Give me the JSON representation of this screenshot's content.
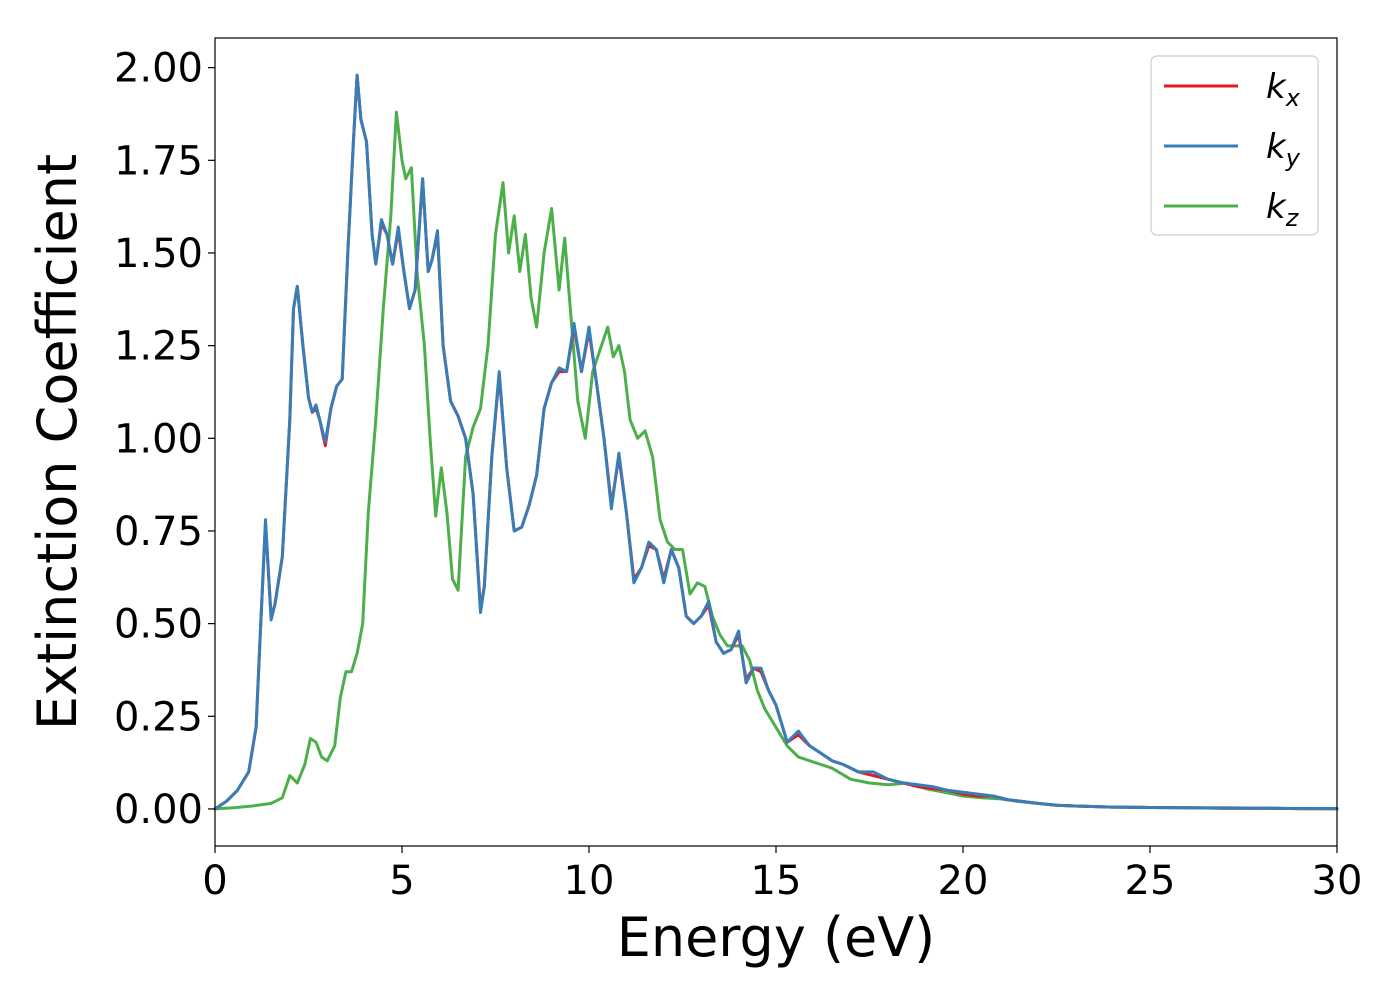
{
  "chart_data": {
    "type": "line",
    "title": "",
    "xlabel": "Energy (eV)",
    "ylabel": "Extinction Coefficient",
    "xlim": [
      0,
      30
    ],
    "ylim": [
      -0.1,
      2.08
    ],
    "xticks": [
      "0",
      "5",
      "10",
      "15",
      "20",
      "25",
      "30"
    ],
    "yticks": [
      "0.00",
      "0.25",
      "0.50",
      "0.75",
      "1.00",
      "1.25",
      "1.50",
      "1.75",
      "2.00"
    ],
    "grid": false,
    "legend_position": "top-right",
    "series": [
      {
        "name": "k_x",
        "label_base": "k",
        "label_sub": "x",
        "color": "#e41a1c",
        "x": [
          0,
          0.3,
          0.6,
          0.9,
          1.1,
          1.2,
          1.35,
          1.5,
          1.6,
          1.8,
          2.0,
          2.1,
          2.2,
          2.35,
          2.5,
          2.6,
          2.7,
          2.8,
          2.95,
          3.1,
          3.25,
          3.4,
          3.55,
          3.7,
          3.8,
          3.9,
          4.05,
          4.2,
          4.3,
          4.45,
          4.6,
          4.75,
          4.9,
          5.05,
          5.2,
          5.35,
          5.55,
          5.7,
          5.8,
          5.95,
          6.1,
          6.3,
          6.5,
          6.7,
          6.9,
          7.1,
          7.2,
          7.4,
          7.6,
          7.8,
          8.0,
          8.2,
          8.4,
          8.6,
          8.8,
          9.0,
          9.2,
          9.4,
          9.6,
          9.8,
          10.0,
          10.2,
          10.4,
          10.6,
          10.8,
          11.0,
          11.2,
          11.4,
          11.6,
          11.8,
          12.0,
          12.2,
          12.4,
          12.6,
          12.8,
          13.0,
          13.2,
          13.4,
          13.6,
          13.8,
          14.0,
          14.2,
          14.4,
          14.6,
          14.8,
          15.0,
          15.3,
          15.6,
          15.9,
          16.2,
          16.5,
          16.8,
          17.2,
          17.6,
          18.0,
          18.4,
          18.8,
          19.2,
          19.6,
          20.0,
          20.4,
          20.8,
          21.2,
          21.6,
          22.0,
          22.5,
          23.0,
          24.0,
          25.0,
          26.0,
          27.0,
          28.0,
          29.0,
          30.0
        ],
        "values": [
          0.0,
          0.02,
          0.05,
          0.1,
          0.22,
          0.45,
          0.77,
          0.52,
          0.55,
          0.68,
          1.05,
          1.35,
          1.41,
          1.25,
          1.11,
          1.07,
          1.08,
          1.05,
          0.98,
          1.08,
          1.14,
          1.16,
          1.5,
          1.8,
          1.98,
          1.86,
          1.8,
          1.55,
          1.47,
          1.58,
          1.55,
          1.47,
          1.56,
          1.45,
          1.35,
          1.4,
          1.7,
          1.45,
          1.48,
          1.55,
          1.25,
          1.1,
          1.06,
          1.0,
          0.85,
          0.54,
          0.6,
          0.95,
          1.17,
          0.92,
          0.75,
          0.76,
          0.82,
          0.9,
          1.08,
          1.15,
          1.18,
          1.18,
          1.3,
          1.18,
          1.29,
          1.15,
          1.0,
          0.82,
          0.95,
          0.8,
          0.62,
          0.65,
          0.71,
          0.7,
          0.62,
          0.7,
          0.65,
          0.52,
          0.5,
          0.52,
          0.55,
          0.45,
          0.42,
          0.43,
          0.47,
          0.35,
          0.38,
          0.37,
          0.32,
          0.28,
          0.18,
          0.2,
          0.17,
          0.15,
          0.13,
          0.12,
          0.1,
          0.09,
          0.08,
          0.07,
          0.06,
          0.055,
          0.05,
          0.04,
          0.035,
          0.035,
          0.025,
          0.02,
          0.015,
          0.01,
          0.008,
          0.005,
          0.004,
          0.003,
          0.002,
          0.002,
          0.001,
          0.001
        ]
      },
      {
        "name": "k_y",
        "label_base": "k",
        "label_sub": "y",
        "color": "#377eb8",
        "x": [
          0,
          0.3,
          0.6,
          0.9,
          1.1,
          1.2,
          1.35,
          1.5,
          1.6,
          1.8,
          2.0,
          2.1,
          2.2,
          2.35,
          2.5,
          2.6,
          2.7,
          2.8,
          2.95,
          3.1,
          3.25,
          3.4,
          3.55,
          3.7,
          3.8,
          3.9,
          4.05,
          4.2,
          4.3,
          4.45,
          4.6,
          4.75,
          4.9,
          5.05,
          5.2,
          5.35,
          5.55,
          5.7,
          5.8,
          5.95,
          6.1,
          6.3,
          6.5,
          6.7,
          6.9,
          7.1,
          7.2,
          7.4,
          7.6,
          7.8,
          8.0,
          8.2,
          8.4,
          8.6,
          8.8,
          9.0,
          9.2,
          9.4,
          9.6,
          9.8,
          10.0,
          10.2,
          10.4,
          10.6,
          10.8,
          11.0,
          11.2,
          11.4,
          11.6,
          11.8,
          12.0,
          12.2,
          12.4,
          12.6,
          12.8,
          13.0,
          13.2,
          13.4,
          13.6,
          13.8,
          14.0,
          14.2,
          14.4,
          14.6,
          14.8,
          15.0,
          15.3,
          15.6,
          15.9,
          16.2,
          16.5,
          16.8,
          17.2,
          17.6,
          18.0,
          18.4,
          18.8,
          19.2,
          19.6,
          20.0,
          20.4,
          20.8,
          21.2,
          21.6,
          22.0,
          22.5,
          23.0,
          24.0,
          25.0,
          26.0,
          27.0,
          28.0,
          29.0,
          30.0
        ],
        "values": [
          0.0,
          0.02,
          0.05,
          0.1,
          0.22,
          0.45,
          0.78,
          0.51,
          0.55,
          0.68,
          1.05,
          1.35,
          1.41,
          1.25,
          1.11,
          1.07,
          1.09,
          1.05,
          0.99,
          1.08,
          1.14,
          1.16,
          1.5,
          1.8,
          1.98,
          1.86,
          1.8,
          1.55,
          1.47,
          1.59,
          1.55,
          1.47,
          1.57,
          1.45,
          1.35,
          1.4,
          1.7,
          1.45,
          1.48,
          1.56,
          1.25,
          1.1,
          1.06,
          1.0,
          0.85,
          0.53,
          0.6,
          0.95,
          1.18,
          0.92,
          0.75,
          0.76,
          0.82,
          0.9,
          1.08,
          1.15,
          1.19,
          1.18,
          1.31,
          1.18,
          1.3,
          1.15,
          1.0,
          0.81,
          0.96,
          0.8,
          0.61,
          0.65,
          0.72,
          0.7,
          0.61,
          0.7,
          0.65,
          0.52,
          0.5,
          0.52,
          0.56,
          0.45,
          0.42,
          0.43,
          0.48,
          0.34,
          0.38,
          0.38,
          0.32,
          0.28,
          0.18,
          0.21,
          0.17,
          0.15,
          0.13,
          0.12,
          0.1,
          0.1,
          0.08,
          0.07,
          0.065,
          0.06,
          0.05,
          0.045,
          0.04,
          0.035,
          0.025,
          0.02,
          0.015,
          0.01,
          0.008,
          0.005,
          0.004,
          0.003,
          0.002,
          0.002,
          0.001,
          0.001
        ]
      },
      {
        "name": "k_z",
        "label_base": "k",
        "label_sub": "z",
        "color": "#4daf4a",
        "x": [
          0,
          0.5,
          1.0,
          1.5,
          1.8,
          2.0,
          2.2,
          2.4,
          2.55,
          2.7,
          2.85,
          3.0,
          3.2,
          3.35,
          3.5,
          3.65,
          3.8,
          3.95,
          4.1,
          4.3,
          4.5,
          4.7,
          4.85,
          5.0,
          5.1,
          5.25,
          5.4,
          5.6,
          5.75,
          5.9,
          6.05,
          6.2,
          6.35,
          6.5,
          6.7,
          6.9,
          7.1,
          7.3,
          7.5,
          7.7,
          7.85,
          8.0,
          8.15,
          8.3,
          8.45,
          8.6,
          8.8,
          9.0,
          9.2,
          9.35,
          9.5,
          9.7,
          9.9,
          10.1,
          10.3,
          10.5,
          10.65,
          10.8,
          10.95,
          11.1,
          11.3,
          11.5,
          11.7,
          11.9,
          12.1,
          12.3,
          12.5,
          12.7,
          12.9,
          13.1,
          13.3,
          13.5,
          13.7,
          13.9,
          14.1,
          14.3,
          14.5,
          14.7,
          15.0,
          15.3,
          15.6,
          15.9,
          16.2,
          16.5,
          17.0,
          17.5,
          18.0,
          18.5,
          19.0,
          19.5,
          20.0,
          20.5,
          21.0,
          21.5,
          22.0,
          22.5,
          23.0,
          24.0,
          25.0,
          26.0,
          27.0,
          28.0,
          29.0,
          30.0
        ],
        "values": [
          0.0,
          0.003,
          0.008,
          0.015,
          0.03,
          0.09,
          0.07,
          0.12,
          0.19,
          0.18,
          0.14,
          0.13,
          0.17,
          0.3,
          0.37,
          0.37,
          0.42,
          0.5,
          0.8,
          1.05,
          1.35,
          1.6,
          1.88,
          1.75,
          1.7,
          1.73,
          1.45,
          1.25,
          1.0,
          0.79,
          0.92,
          0.8,
          0.62,
          0.59,
          0.95,
          1.03,
          1.08,
          1.25,
          1.55,
          1.69,
          1.5,
          1.6,
          1.45,
          1.55,
          1.38,
          1.3,
          1.5,
          1.62,
          1.4,
          1.54,
          1.35,
          1.1,
          1.0,
          1.18,
          1.24,
          1.3,
          1.22,
          1.25,
          1.18,
          1.05,
          1.0,
          1.02,
          0.95,
          0.78,
          0.72,
          0.7,
          0.7,
          0.58,
          0.61,
          0.6,
          0.52,
          0.47,
          0.44,
          0.44,
          0.44,
          0.4,
          0.32,
          0.27,
          0.22,
          0.17,
          0.14,
          0.13,
          0.12,
          0.11,
          0.08,
          0.07,
          0.065,
          0.07,
          0.055,
          0.045,
          0.035,
          0.03,
          0.027,
          0.02,
          0.015,
          0.01,
          0.008,
          0.005,
          0.004,
          0.003,
          0.003,
          0.002,
          0.001,
          0.0005
        ]
      }
    ]
  }
}
